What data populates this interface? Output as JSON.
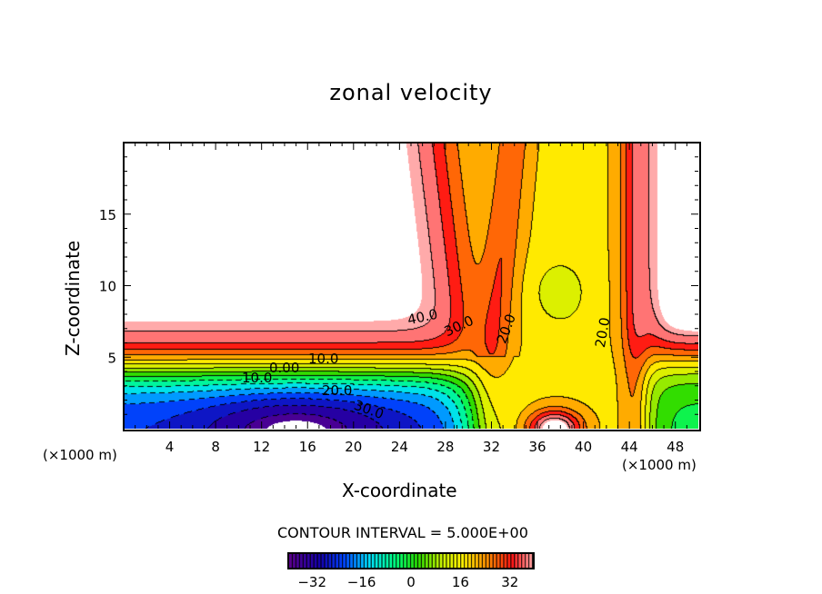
{
  "chart_data": {
    "type": "heatmap",
    "subtype": "filled-contour",
    "title": "zonal velocity",
    "xlabel": "X-coordinate",
    "ylabel": "Z-coordinate",
    "x_unit_label": "(×1000 m)",
    "x_unit_label_right": "(×1000 m)",
    "xlim": [
      0,
      50
    ],
    "ylim": [
      0,
      20
    ],
    "xticks": [
      4,
      8,
      12,
      16,
      20,
      24,
      28,
      32,
      36,
      40,
      44,
      48
    ],
    "yticks": [
      5,
      10,
      15
    ],
    "contour_interval_label": "CONTOUR INTERVAL = 5.000E+00",
    "contour_interval": 5,
    "contour_labels": [
      "40.0",
      "30.0",
      "20.0",
      "20.0",
      "10.0",
      "0.00",
      "10.0",
      "20.0",
      "30.0"
    ],
    "colorbar": {
      "range": [
        -40,
        40
      ],
      "ticks": [
        -32,
        -16,
        0,
        16,
        32
      ],
      "tick_labels": [
        "−32",
        "−16",
        "0",
        "16",
        "32"
      ]
    },
    "grid": false
  }
}
